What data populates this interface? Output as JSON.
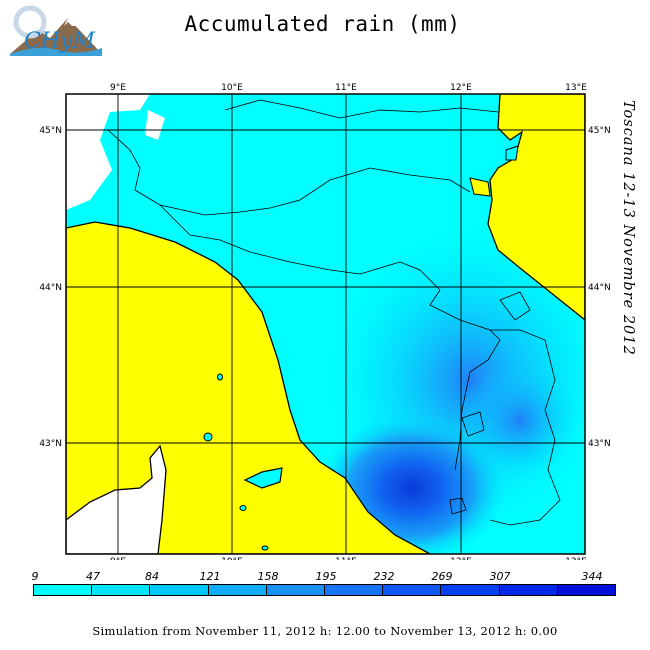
{
  "title": "Accumulated rain (mm)",
  "side_label": "Toscana 12-13 Novembre 2012",
  "footer": "Simulation from November 11, 2012 h: 12.00 to November 13, 2012 h: 0.00",
  "logo": {
    "text": "CHyM"
  },
  "map": {
    "lon_labels": [
      "9°E",
      "10°E",
      "11°E",
      "12°E",
      "13°E"
    ],
    "lat_labels": [
      "45°N",
      "44°N",
      "43°N"
    ],
    "colors": {
      "land_low": "#00ffff",
      "sea": "#ffff00",
      "heavy": "#0040f0",
      "outside": "#ffffff"
    }
  },
  "legend": {
    "values": [
      "9",
      "47",
      "84",
      "121",
      "158",
      "195",
      "232",
      "269",
      "307",
      "344"
    ],
    "colors": [
      "#00ffff",
      "#00e4f8",
      "#00c8f8",
      "#10acf8",
      "#1890f8",
      "#1874f8",
      "#1058f4",
      "#0840f0",
      "#0428e8",
      "#0010d8"
    ]
  }
}
